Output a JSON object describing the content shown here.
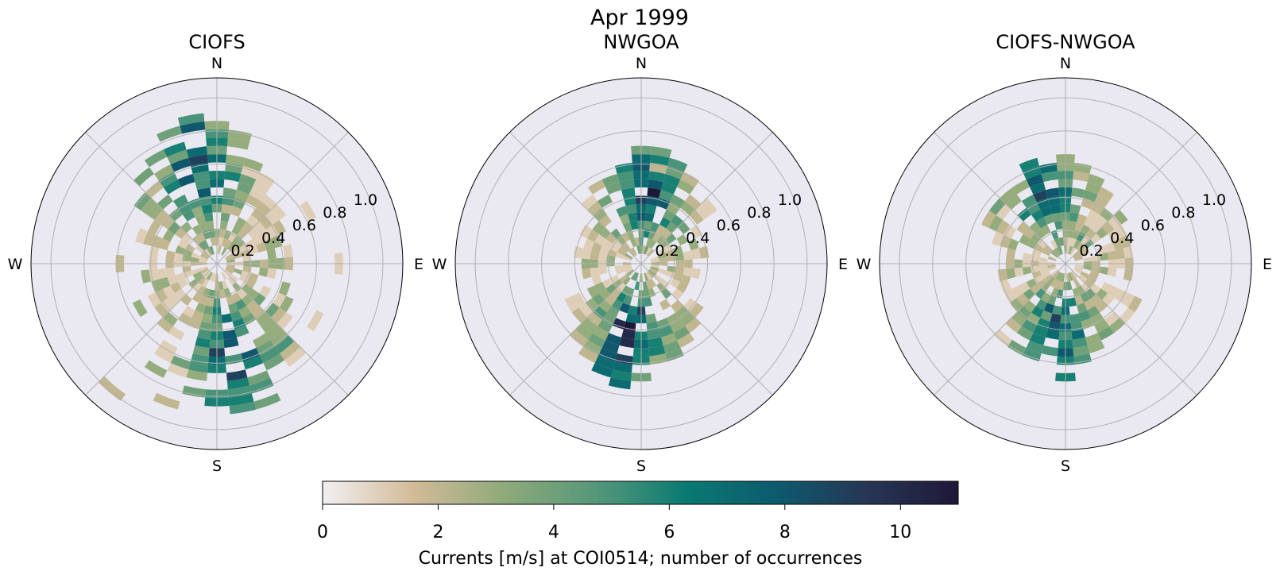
{
  "figure": {
    "title": "Apr 1999",
    "colorbar": {
      "label": "Currents [m/s] at COI0514; number of occurrences",
      "vmin": 0,
      "vmax": 11,
      "ticks": [
        "0",
        "2",
        "4",
        "6",
        "8",
        "10"
      ],
      "tick_values": [
        0,
        2,
        4,
        6,
        8,
        10
      ],
      "colormap_stops": [
        "#f2eff2",
        "#d2bb97",
        "#8faa7a",
        "#56987a",
        "#0a7a72",
        "#0d5a6e",
        "#273654",
        "#1e1838"
      ]
    }
  },
  "chart_data": [
    {
      "type": "heatmap",
      "subtype": "polar current rose",
      "title": "CIOFS",
      "directions": [
        "N",
        "E",
        "S",
        "W"
      ],
      "radial_ticks": [
        "0.2",
        "0.4",
        "0.6",
        "0.8",
        "1.0"
      ],
      "radial_tick_values": [
        0.2,
        0.4,
        0.6,
        0.8,
        1.0
      ],
      "rmax": 1.12,
      "direction_bin_deg": 10,
      "speed_bin": 0.05,
      "grid": true,
      "dominant_direction_deg": 350,
      "secondary_direction_deg": 170,
      "max_count": 9,
      "occurrences": {
        "description": "count per [direction_deg, speed_center]",
        "cells": [
          [
            340,
            0.62,
            8
          ],
          [
            350,
            0.68,
            7
          ],
          [
            340,
            0.72,
            6
          ],
          [
            0,
            0.52,
            6
          ],
          [
            10,
            0.38,
            5
          ],
          [
            330,
            0.58,
            5
          ],
          [
            320,
            0.45,
            4
          ],
          [
            350,
            0.52,
            5
          ],
          [
            20,
            0.45,
            4
          ],
          [
            30,
            0.25,
            3
          ],
          [
            180,
            0.52,
            9
          ],
          [
            180,
            0.62,
            6
          ],
          [
            170,
            0.58,
            5
          ],
          [
            190,
            0.55,
            5
          ],
          [
            200,
            0.62,
            4
          ],
          [
            160,
            0.42,
            5
          ],
          [
            150,
            0.38,
            4
          ],
          [
            210,
            0.72,
            3
          ],
          [
            200,
            0.85,
            2
          ],
          [
            220,
            0.95,
            2
          ],
          [
            90,
            0.72,
            1
          ],
          [
            60,
            0.6,
            1
          ],
          [
            270,
            0.55,
            2
          ],
          [
            120,
            0.68,
            1
          ],
          [
            240,
            0.5,
            3
          ]
        ]
      }
    },
    {
      "type": "heatmap",
      "subtype": "polar current rose",
      "title": "NWGOA",
      "directions": [
        "N",
        "E",
        "S",
        "W"
      ],
      "radial_ticks": [
        "0.2",
        "0.4",
        "0.6",
        "0.8",
        "1.0"
      ],
      "radial_tick_values": [
        0.2,
        0.4,
        0.6,
        0.8,
        1.0
      ],
      "rmax": 1.12,
      "direction_bin_deg": 10,
      "speed_bin": 0.05,
      "grid": true,
      "dominant_direction_deg": 5,
      "secondary_direction_deg": 190,
      "max_count": 11,
      "occurrences": {
        "description": "count per [direction_deg, speed_center]",
        "cells": [
          [
            5,
            0.42,
            11
          ],
          [
            5,
            0.48,
            8
          ],
          [
            355,
            0.45,
            7
          ],
          [
            15,
            0.38,
            8
          ],
          [
            25,
            0.28,
            6
          ],
          [
            345,
            0.35,
            6
          ],
          [
            5,
            0.32,
            6
          ],
          [
            185,
            0.35,
            11
          ],
          [
            195,
            0.38,
            10
          ],
          [
            175,
            0.28,
            9
          ],
          [
            185,
            0.48,
            10
          ],
          [
            195,
            0.28,
            8
          ],
          [
            205,
            0.22,
            6
          ],
          [
            165,
            0.22,
            5
          ],
          [
            215,
            0.3,
            3
          ],
          [
            45,
            0.2,
            4
          ],
          [
            135,
            0.2,
            4
          ],
          [
            315,
            0.22,
            4
          ],
          [
            225,
            0.25,
            3
          ],
          [
            5,
            0.58,
            2
          ]
        ]
      }
    },
    {
      "type": "heatmap",
      "subtype": "polar current rose",
      "title": "CIOFS-NWGOA",
      "directions": [
        "N",
        "E",
        "S",
        "W"
      ],
      "radial_ticks": [
        "0.2",
        "0.4",
        "0.6",
        "0.8",
        "1.0"
      ],
      "radial_tick_values": [
        0.2,
        0.4,
        0.6,
        0.8,
        1.0
      ],
      "rmax": 1.12,
      "direction_bin_deg": 10,
      "speed_bin": 0.05,
      "grid": true,
      "dominant_direction_deg": 345,
      "secondary_direction_deg": 185,
      "max_count": 9,
      "occurrences": {
        "description": "count per [direction_deg, speed_center]",
        "cells": [
          [
            345,
            0.42,
            8
          ],
          [
            335,
            0.38,
            7
          ],
          [
            355,
            0.35,
            6
          ],
          [
            325,
            0.3,
            6
          ],
          [
            5,
            0.28,
            5
          ],
          [
            185,
            0.3,
            9
          ],
          [
            195,
            0.28,
            8
          ],
          [
            175,
            0.28,
            7
          ],
          [
            165,
            0.22,
            6
          ],
          [
            205,
            0.32,
            6
          ],
          [
            215,
            0.22,
            5
          ],
          [
            25,
            0.18,
            5
          ],
          [
            45,
            0.16,
            4
          ],
          [
            135,
            0.22,
            4
          ],
          [
            225,
            0.35,
            3
          ],
          [
            120,
            0.45,
            2
          ],
          [
            100,
            0.38,
            2
          ],
          [
            300,
            0.25,
            3
          ],
          [
            260,
            0.2,
            3
          ],
          [
            70,
            0.3,
            2
          ]
        ]
      }
    }
  ]
}
